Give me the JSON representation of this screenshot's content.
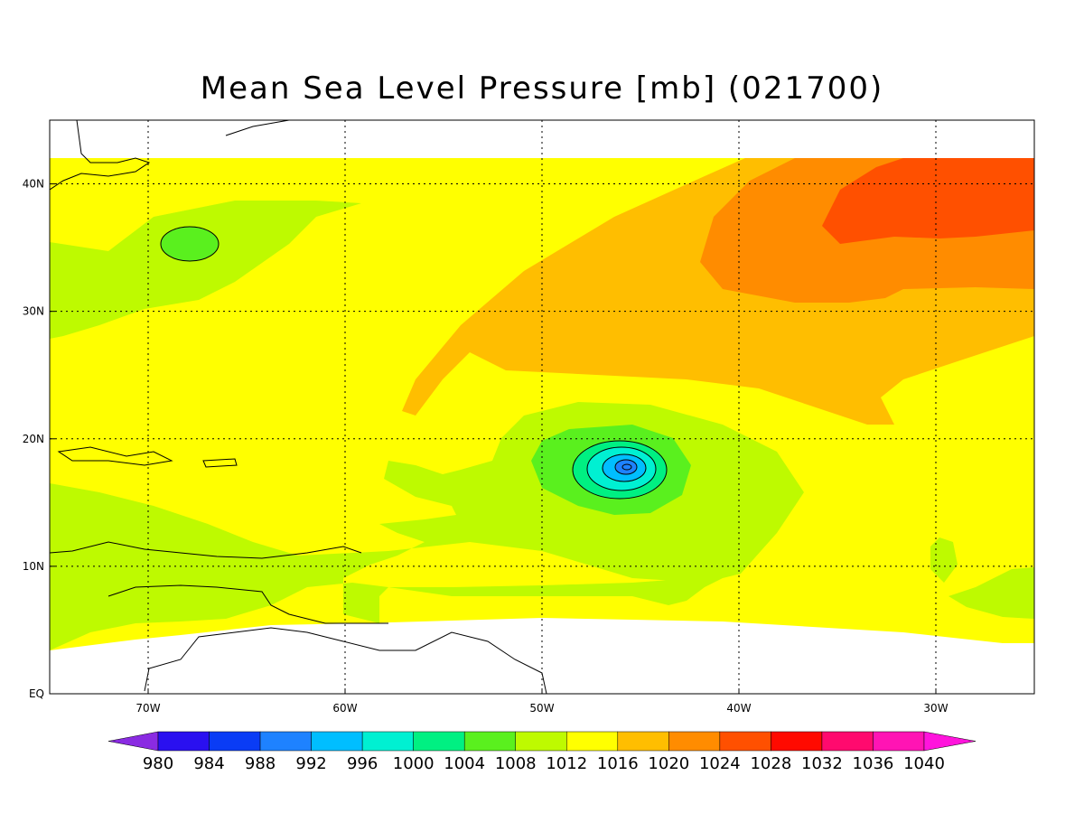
{
  "title": "Mean Sea Level Pressure [mb] (021700)",
  "map": {
    "lon_ticks": [
      {
        "value": -70,
        "label": "70W"
      },
      {
        "value": -60,
        "label": "60W"
      },
      {
        "value": -50,
        "label": "50W"
      },
      {
        "value": -40,
        "label": "40W"
      },
      {
        "value": -30,
        "label": "30W"
      }
    ],
    "lat_ticks": [
      {
        "value": 0,
        "label": "EQ"
      },
      {
        "value": 10,
        "label": "10N"
      },
      {
        "value": 20,
        "label": "20N"
      },
      {
        "value": 30,
        "label": "30N"
      },
      {
        "value": 40,
        "label": "40N"
      }
    ],
    "lon_range": [
      -75,
      -25
    ],
    "lat_range": [
      0,
      45
    ],
    "grid": "dotted"
  },
  "colorbar": {
    "levels": [
      980,
      984,
      988,
      992,
      996,
      1000,
      1004,
      1008,
      1012,
      1016,
      1020,
      1024,
      1028,
      1032,
      1036,
      1040
    ],
    "colors": [
      "#8a2be2",
      "#2a10f0",
      "#0a3cf5",
      "#1e82ff",
      "#00beff",
      "#00f0d2",
      "#00f082",
      "#5af01e",
      "#befa00",
      "#ffff00",
      "#ffbe00",
      "#ff8c00",
      "#ff5000",
      "#ff0a00",
      "#ff0a6e",
      "#ff14b4",
      "#ff14dc"
    ]
  },
  "colors": {
    "c1008": "#befa00",
    "c1012": "#ffff00",
    "c1016": "#ffbe00",
    "c1020": "#ff8c00",
    "c1024": "#ff5000",
    "c1004": "#5af01e",
    "c1000": "#00f082",
    "c996": "#00f0d2",
    "c992": "#00beff",
    "c988": "#1e82ff"
  }
}
